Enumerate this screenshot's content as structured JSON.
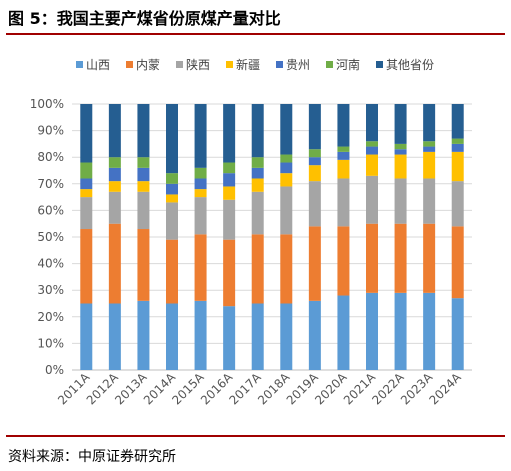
{
  "title": "图 5：我国主要产煤省份原煤产量对比",
  "source": "资料来源：中原证券研究所",
  "chart_data": {
    "type": "bar",
    "stacked": true,
    "percent": true,
    "categories": [
      "2011A",
      "2012A",
      "2013A",
      "2014A",
      "2015A",
      "2016A",
      "2017A",
      "2018A",
      "2019A",
      "2020A",
      "2021A",
      "2022A",
      "2023A",
      "2024A"
    ],
    "yticks": [
      "0%",
      "10%",
      "20%",
      "30%",
      "40%",
      "50%",
      "60%",
      "70%",
      "80%",
      "90%",
      "100%"
    ],
    "ylim": [
      0,
      100
    ],
    "grid": true,
    "legend_position": "top",
    "series": [
      {
        "name": "山西",
        "color": "#5b9bd5",
        "values": [
          25,
          25,
          26,
          25,
          26,
          24,
          25,
          25,
          26,
          28,
          29,
          29,
          29,
          27
        ]
      },
      {
        "name": "内蒙",
        "color": "#ed7d31",
        "values": [
          28,
          30,
          27,
          24,
          25,
          25,
          26,
          26,
          28,
          26,
          26,
          26,
          26,
          27
        ]
      },
      {
        "name": "陕西",
        "color": "#a5a5a5",
        "values": [
          12,
          12,
          14,
          14,
          14,
          15,
          16,
          18,
          17,
          18,
          18,
          17,
          17,
          17
        ]
      },
      {
        "name": "新疆",
        "color": "#ffc000",
        "values": [
          3,
          4,
          4,
          3,
          3,
          5,
          5,
          5,
          6,
          7,
          8,
          9,
          10,
          11
        ]
      },
      {
        "name": "贵州",
        "color": "#4472c4",
        "values": [
          4,
          5,
          5,
          4,
          4,
          5,
          4,
          4,
          3,
          3,
          3,
          2,
          2,
          3
        ]
      },
      {
        "name": "河南",
        "color": "#70ad47",
        "values": [
          6,
          4,
          4,
          4,
          4,
          4,
          4,
          3,
          3,
          2,
          2,
          2,
          2,
          2
        ]
      },
      {
        "name": "其他省份",
        "color": "#255e91",
        "values": [
          22,
          20,
          20,
          26,
          24,
          22,
          20,
          19,
          17,
          16,
          14,
          15,
          14,
          13
        ]
      }
    ]
  }
}
